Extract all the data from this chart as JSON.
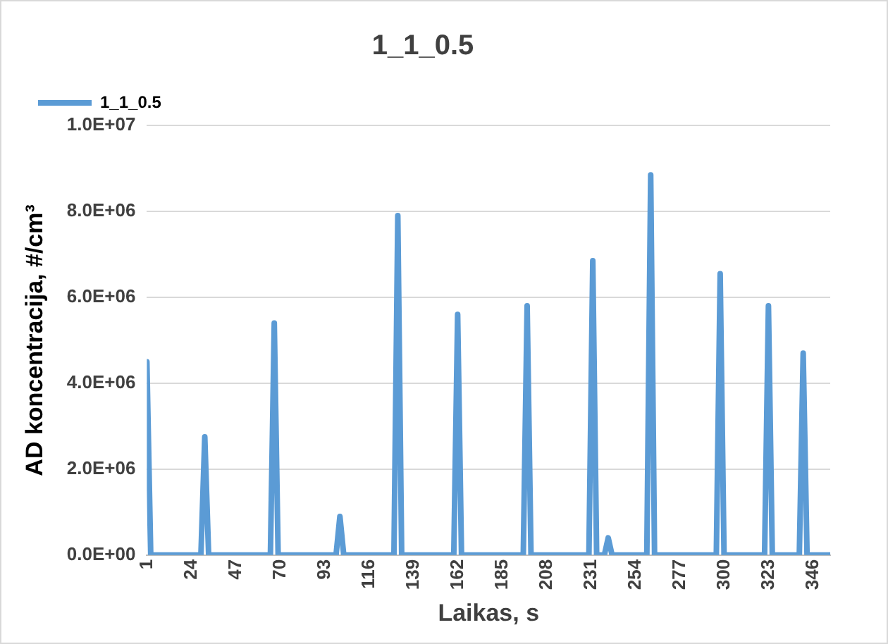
{
  "chart_data": {
    "type": "line",
    "title": "1_1_0.5",
    "xlabel": "Laikas, s",
    "ylabel": "AD koncentracija, #/cm³",
    "xlim": [
      1,
      355
    ],
    "xticks": [
      1,
      24,
      47,
      70,
      93,
      116,
      139,
      162,
      185,
      208,
      231,
      254,
      277,
      300,
      323,
      346
    ],
    "ylim": [
      0,
      10000000
    ],
    "yticks": [
      {
        "value": 0,
        "label": "0.0E+00"
      },
      {
        "value": 2000000,
        "label": "2.0E+06"
      },
      {
        "value": 4000000,
        "label": "4.0E+06"
      },
      {
        "value": 6000000,
        "label": "6.0E+06"
      },
      {
        "value": 8000000,
        "label": "8.0E+06"
      },
      {
        "value": 10000000,
        "label": "1.0E+07"
      }
    ],
    "grid": "y",
    "legend": "top left",
    "marker": "none",
    "line_style": "solid",
    "series": [
      {
        "name": "1_1_0.5",
        "color": "#5b9bd5",
        "x": [
          1,
          3,
          29,
          31,
          33,
          65,
          67,
          69,
          99,
          101,
          103,
          129,
          131,
          133,
          160,
          162,
          164,
          196,
          198,
          200,
          230,
          232,
          234,
          238,
          240,
          242,
          260,
          262,
          264,
          296,
          298,
          300,
          321,
          323,
          325,
          339,
          341,
          343,
          355
        ],
        "values": [
          4500000,
          0,
          0,
          2750000,
          0,
          0,
          5400000,
          0,
          0,
          900000,
          0,
          0,
          7900000,
          0,
          0,
          5600000,
          0,
          0,
          5800000,
          0,
          0,
          6850000,
          0,
          0,
          400000,
          0,
          0,
          8850000,
          0,
          0,
          6550000,
          0,
          0,
          5800000,
          0,
          0,
          4700000,
          0,
          0
        ]
      }
    ]
  }
}
